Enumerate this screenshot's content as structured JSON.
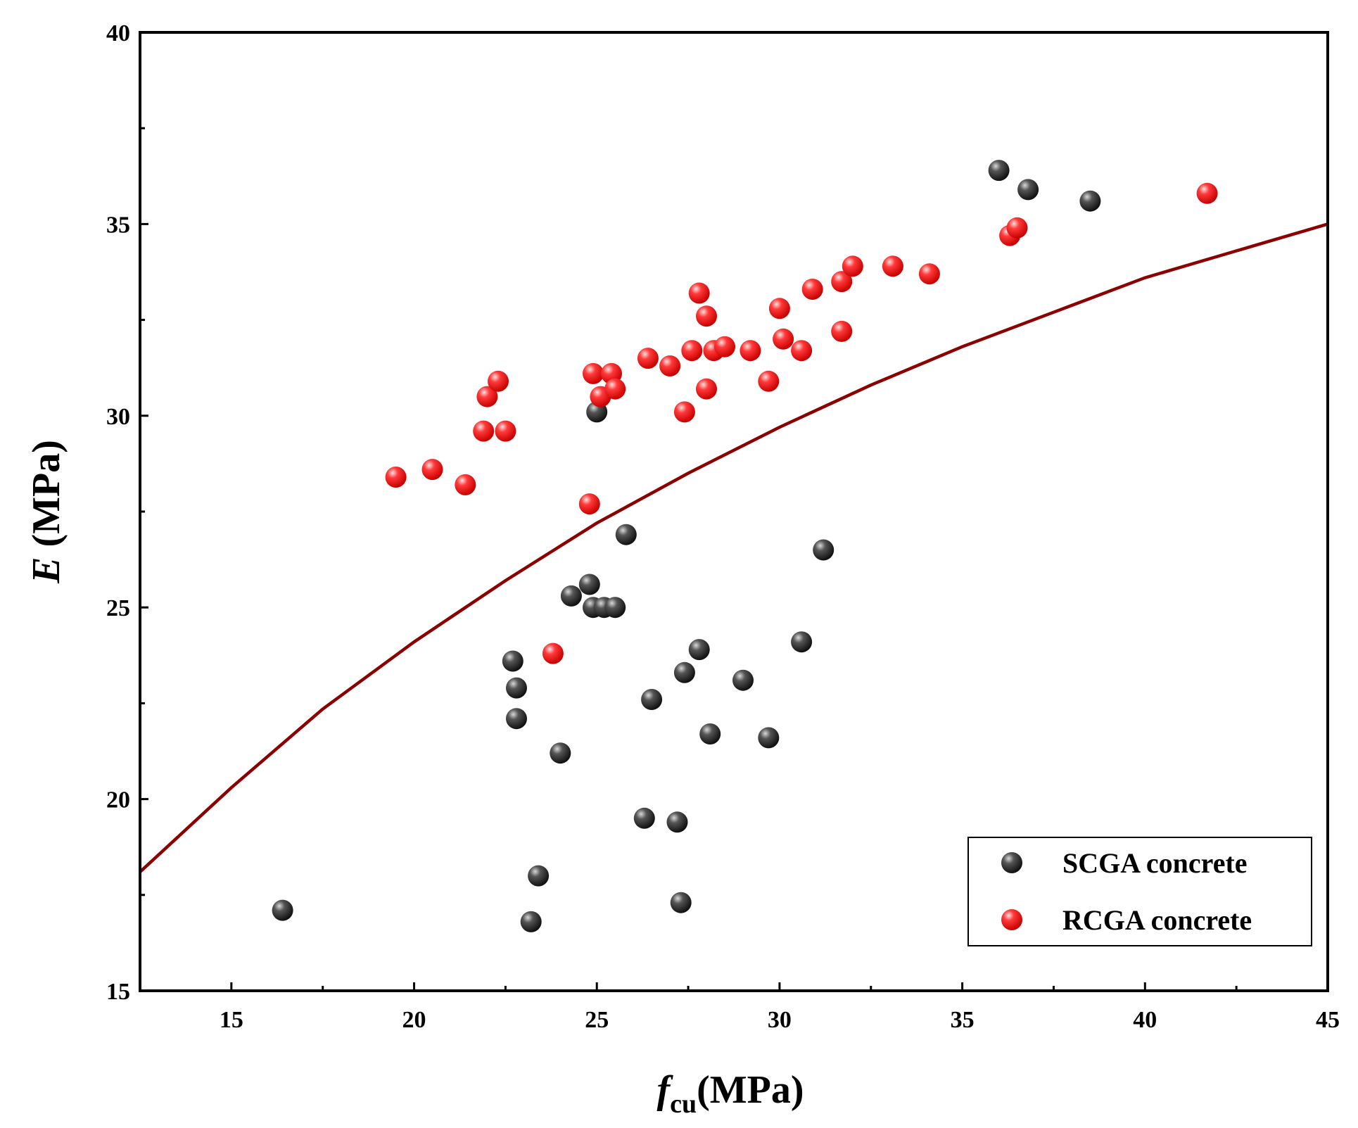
{
  "chart_data": {
    "type": "scatter",
    "title": "",
    "xlabel": {
      "main": "f",
      "sub": "cu",
      "unit": "(MPa)"
    },
    "ylabel": {
      "main": "E",
      "unit": " (MPa)"
    },
    "xlim": [
      12.5,
      45
    ],
    "ylim": [
      15,
      40
    ],
    "x_ticks": [
      "15",
      "20",
      "25",
      "30",
      "35",
      "40",
      "45"
    ],
    "y_ticks": [
      "15",
      "20",
      "25",
      "30",
      "35",
      "40"
    ],
    "grid": false,
    "legend_position": "bottom-right",
    "series": [
      {
        "name": "SCGA concrete",
        "color": "#3a3a3a",
        "points": [
          [
            16.4,
            17.1
          ],
          [
            22.7,
            23.6
          ],
          [
            22.8,
            22.9
          ],
          [
            22.8,
            22.1
          ],
          [
            23.2,
            16.8
          ],
          [
            23.4,
            18.0
          ],
          [
            24.0,
            21.2
          ],
          [
            24.3,
            25.3
          ],
          [
            24.8,
            25.6
          ],
          [
            24.9,
            25.0
          ],
          [
            25.0,
            30.1
          ],
          [
            25.2,
            25.0
          ],
          [
            25.5,
            25.0
          ],
          [
            25.8,
            26.9
          ],
          [
            26.3,
            19.5
          ],
          [
            26.5,
            22.6
          ],
          [
            27.2,
            19.4
          ],
          [
            27.3,
            17.3
          ],
          [
            27.4,
            23.3
          ],
          [
            27.8,
            23.9
          ],
          [
            28.1,
            21.7
          ],
          [
            29.0,
            23.1
          ],
          [
            29.7,
            21.6
          ],
          [
            30.6,
            24.1
          ],
          [
            31.2,
            26.5
          ],
          [
            36.0,
            36.4
          ],
          [
            36.8,
            35.9
          ],
          [
            38.5,
            35.6
          ]
        ]
      },
      {
        "name": "RCGA concrete",
        "color": "#ff2020",
        "points": [
          [
            19.5,
            28.4
          ],
          [
            20.5,
            28.6
          ],
          [
            21.4,
            28.2
          ],
          [
            21.9,
            29.6
          ],
          [
            22.0,
            30.5
          ],
          [
            22.3,
            30.9
          ],
          [
            22.5,
            29.6
          ],
          [
            23.8,
            23.8
          ],
          [
            24.8,
            27.7
          ],
          [
            24.9,
            31.1
          ],
          [
            25.1,
            30.5
          ],
          [
            25.4,
            31.1
          ],
          [
            25.5,
            30.7
          ],
          [
            26.4,
            31.5
          ],
          [
            27.0,
            31.3
          ],
          [
            27.4,
            30.1
          ],
          [
            27.6,
            31.7
          ],
          [
            27.8,
            33.2
          ],
          [
            28.0,
            32.6
          ],
          [
            28.0,
            30.7
          ],
          [
            28.2,
            31.7
          ],
          [
            28.5,
            31.8
          ],
          [
            29.2,
            31.7
          ],
          [
            29.7,
            30.9
          ],
          [
            30.0,
            32.8
          ],
          [
            30.1,
            32.0
          ],
          [
            30.6,
            31.7
          ],
          [
            30.9,
            33.3
          ],
          [
            31.7,
            33.5
          ],
          [
            31.7,
            32.2
          ],
          [
            32.0,
            33.9
          ],
          [
            33.1,
            33.9
          ],
          [
            34.1,
            33.7
          ],
          [
            36.3,
            34.7
          ],
          [
            36.5,
            34.9
          ],
          [
            41.7,
            35.8
          ]
        ]
      },
      {
        "name": "",
        "kind": "fit-curve",
        "color": "#8b0000",
        "points": [
          [
            12.5,
            18.1
          ],
          [
            15,
            20.3
          ],
          [
            17.5,
            22.35
          ],
          [
            20,
            24.1
          ],
          [
            22.5,
            25.7
          ],
          [
            25,
            27.2
          ],
          [
            27.5,
            28.5
          ],
          [
            30,
            29.7
          ],
          [
            32.5,
            30.8
          ],
          [
            35,
            31.8
          ],
          [
            37.5,
            32.7
          ],
          [
            40,
            33.6
          ],
          [
            42.5,
            34.3
          ],
          [
            45,
            35.0
          ]
        ]
      }
    ]
  }
}
